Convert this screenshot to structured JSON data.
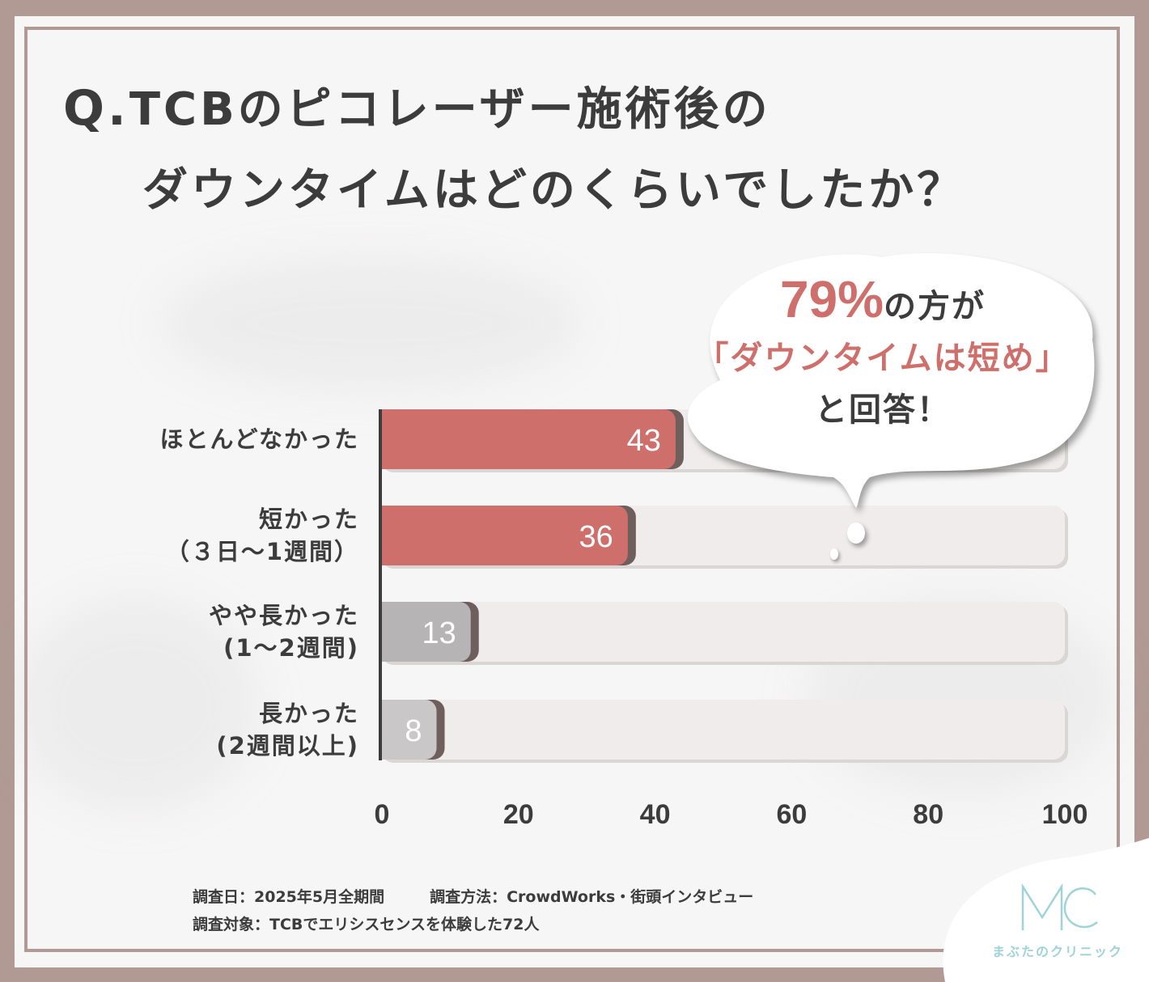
{
  "title": {
    "q_mark": "Q.",
    "line1": "TCBのピコレーザー施術後の",
    "line2": "ダウンタイムはどのくらいでしたか？"
  },
  "callout": {
    "percent": "79%",
    "line1_rest": "の方が",
    "line2": "「ダウンタイムは短め」",
    "line3": "と回答！"
  },
  "chart_data": {
    "type": "bar",
    "orientation": "horizontal",
    "categories": [
      [
        "ほとんどなかった"
      ],
      [
        "短かった",
        "（３日〜1週間）"
      ],
      [
        "やや長かった",
        "(1〜2週間)"
      ],
      [
        "長かった",
        "(2週間以上)"
      ]
    ],
    "values": [
      43,
      36,
      13,
      8
    ],
    "xlim": [
      0,
      100
    ],
    "xticks": [
      0,
      20,
      40,
      60,
      80,
      100
    ],
    "colors": [
      "#cf6f6c",
      "#cf6f6c",
      "#b6b4b4",
      "#c9c7c7"
    ],
    "track_color": "#efeceb",
    "grid": false,
    "legend": "none"
  },
  "footnote": {
    "date": "調査日：2025年5月全期間",
    "method": "調査方法：CrowdWorks・街頭インタビュー",
    "target": "調査対象：TCBでエリシスセンスを体験した72人"
  },
  "logo": {
    "mark": "MC",
    "name": "まぶたのクリニック",
    "color": "#9fd3da"
  }
}
